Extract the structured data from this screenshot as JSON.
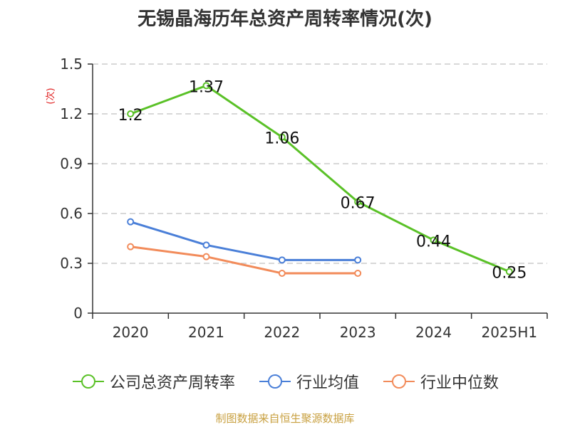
{
  "chart_data": {
    "type": "line",
    "title": "无锡晶海历年总资产周转率情况(次)",
    "ylabel": "(次)",
    "xlabel": "",
    "categories": [
      "2020",
      "2021",
      "2022",
      "2023",
      "2024",
      "2025H1"
    ],
    "yticks": [
      "0",
      "0.3",
      "0.6",
      "0.9",
      "1.2",
      "1.5"
    ],
    "ylim": [
      0,
      1.5
    ],
    "grid": true,
    "legend_position": "bottom",
    "series": [
      {
        "name": "公司总资产周转率",
        "color": "#5ac127",
        "values": [
          1.2,
          1.37,
          1.06,
          0.67,
          0.44,
          0.25
        ],
        "labels": [
          "1.2",
          "1.37",
          "1.06",
          "0.67",
          "0.44",
          "0.25"
        ]
      },
      {
        "name": "行业均值",
        "color": "#4a7fd8",
        "values": [
          0.55,
          0.41,
          0.32,
          0.32,
          null,
          null
        ]
      },
      {
        "name": "行业中位数",
        "color": "#f28b5a",
        "values": [
          0.4,
          0.34,
          0.24,
          0.24,
          null,
          null
        ]
      }
    ]
  },
  "source_note": "制图数据来自恒生聚源数据库"
}
